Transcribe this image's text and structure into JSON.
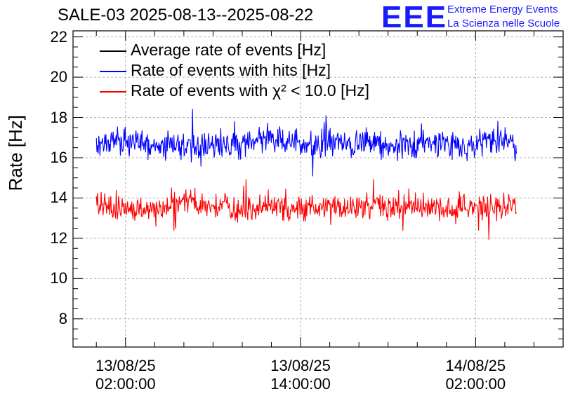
{
  "header": {
    "title": "SALE-03 2025-08-13--2025-08-22"
  },
  "logo": {
    "mark": "EEE",
    "line1": "Extreme Energy Events",
    "line2": "La Scienza nelle Scuole",
    "color": "#1a1aff"
  },
  "legend": {
    "items": [
      {
        "label": "Average rate of events [Hz]",
        "color": "#000000"
      },
      {
        "label": "Rate of events with hits [Hz]",
        "color": "#0000ff"
      },
      {
        "label": "Rate of events with χ² < 10.0 [Hz]",
        "color": "#ff0000"
      }
    ]
  },
  "chart_data": {
    "type": "line",
    "title": "SALE-03 2025-08-13--2025-08-22",
    "xlabel": "",
    "ylabel": "Rate [Hz]",
    "grid": true,
    "ylim": [
      6.6,
      22.3
    ],
    "y_ticks": [
      8,
      10,
      12,
      14,
      16,
      18,
      20,
      22
    ],
    "x_range_hours": [
      -3.6,
      30.0
    ],
    "x_ticks": [
      {
        "hours": 0,
        "date": "13/08/25",
        "time": "02:00:00"
      },
      {
        "hours": 12,
        "date": "13/08/25",
        "time": "14:00:00"
      },
      {
        "hours": 24,
        "date": "14/08/25",
        "time": "02:00:00"
      }
    ],
    "series": [
      {
        "name": "Rate of events with hits [Hz]",
        "color": "#0000ff",
        "x_start_hours": -2.0,
        "x_end_hours": 26.8,
        "mean": 16.7,
        "min": 14.9,
        "max": 18.6
      },
      {
        "name": "Rate of events with χ² < 10.0 [Hz]",
        "color": "#ff0000",
        "x_start_hours": -2.0,
        "x_end_hours": 26.8,
        "mean": 13.6,
        "min": 11.9,
        "max": 15.2
      }
    ]
  }
}
